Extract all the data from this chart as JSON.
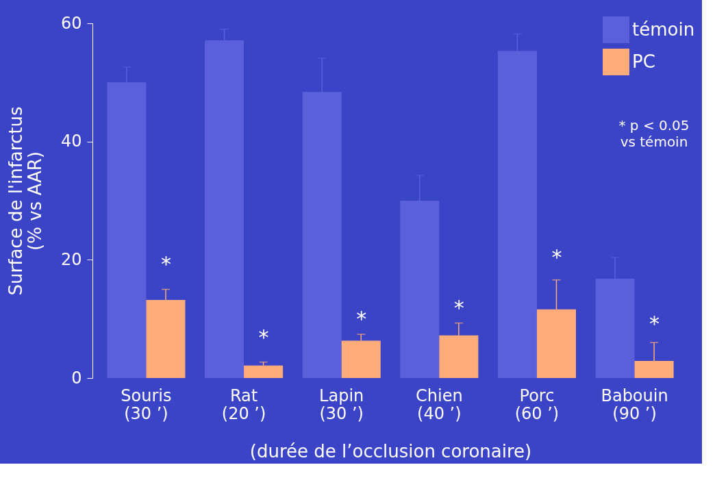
{
  "chart_data": {
    "type": "bar",
    "categories": [
      "Souris\n(30 ’)",
      "Rat\n(20 ’)",
      "Lapin\n(30 ’)",
      "Chien\n(40 ’)",
      "Porc\n(60 ’)",
      "Babouin\n(90 ’)"
    ],
    "series": [
      {
        "name": "témoin",
        "color": "#5a60dc",
        "values": [
          50,
          57.1,
          48.4,
          30,
          55.3,
          16.8
        ],
        "errors": [
          [
            50,
            52.6
          ],
          [
            57.1,
            59
          ],
          [
            48.4,
            54.1
          ],
          [
            30,
            34.3
          ],
          [
            55.3,
            58.2
          ],
          [
            16.8,
            20.4
          ]
        ]
      },
      {
        "name": "PC",
        "color": "#ffab7a",
        "values": [
          13.2,
          2.1,
          6.3,
          7.2,
          11.6,
          2.9
        ],
        "errors": [
          [
            13.2,
            15
          ],
          [
            2.1,
            2.7
          ],
          [
            6.3,
            7.4
          ],
          [
            7.2,
            9.3
          ],
          [
            11.6,
            16.6
          ],
          [
            2.9,
            6
          ]
        ]
      }
    ],
    "ylabel": "Surface de l'infarctus\n(% vs AAR)",
    "xlabel": "(durée de l’occlusion coronaire)",
    "ylim": [
      0,
      60
    ],
    "yticks": [
      0,
      20,
      40,
      60
    ],
    "grid": false,
    "legend": "top right",
    "annotations": [
      {
        "text": "*",
        "x": "Souris\n(30 ’)",
        "y": 19.1
      },
      {
        "text": "*",
        "x": "Rat\n(20 ’)",
        "y": 6.7
      },
      {
        "text": "*",
        "x": "Lapin\n(30 ’)",
        "y": 9.8
      },
      {
        "text": "*",
        "x": "Chien\n(40 ’)",
        "y": 11.7
      },
      {
        "text": "*",
        "x": "Porc\n(60 ’)",
        "y": 20.3
      },
      {
        "text": "*",
        "x": "Babouin\n(90 ’)",
        "y": 9
      },
      "* p < 0.05\nvs témoin"
    ]
  }
}
